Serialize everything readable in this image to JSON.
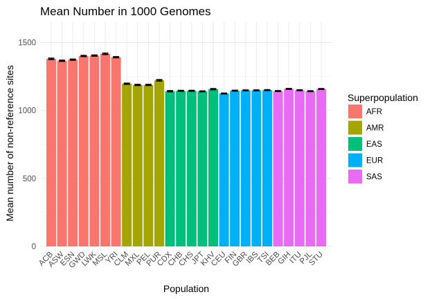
{
  "chart_data": {
    "type": "bar",
    "title": "Mean Number in 1000 Genomes",
    "xlabel": "Population",
    "ylabel": "Mean number of non-reference sites",
    "ylim": [
      0,
      1650
    ],
    "yticks": [
      0,
      500,
      1000,
      1500
    ],
    "grid": true,
    "legend": {
      "title": "Superpopulation",
      "placement": "right",
      "entries": [
        {
          "name": "AFR",
          "color": "#F8766D"
        },
        {
          "name": "AMR",
          "color": "#A3A500"
        },
        {
          "name": "EAS",
          "color": "#00BF7D"
        },
        {
          "name": "EUR",
          "color": "#00B0F6"
        },
        {
          "name": "SAS",
          "color": "#E76BF3"
        }
      ]
    },
    "categories": [
      "ACB",
      "ASW",
      "ESN",
      "GWD",
      "LWK",
      "MSL",
      "YRI",
      "CLM",
      "MXL",
      "PEL",
      "PUR",
      "CDX",
      "CHB",
      "CHS",
      "JPT",
      "KHV",
      "CEU",
      "FIN",
      "GBR",
      "IBS",
      "TSI",
      "BEB",
      "GIH",
      "ITU",
      "PJL",
      "STU"
    ],
    "superpopulation": [
      "AFR",
      "AFR",
      "AFR",
      "AFR",
      "AFR",
      "AFR",
      "AFR",
      "AMR",
      "AMR",
      "AMR",
      "AMR",
      "EAS",
      "EAS",
      "EAS",
      "EAS",
      "EAS",
      "EUR",
      "EUR",
      "EUR",
      "EUR",
      "EUR",
      "SAS",
      "SAS",
      "SAS",
      "SAS",
      "SAS"
    ],
    "values": [
      1380,
      1366,
      1374,
      1401,
      1404,
      1417,
      1392,
      1197,
      1188,
      1188,
      1222,
      1142,
      1145,
      1145,
      1141,
      1157,
      1125,
      1146,
      1148,
      1148,
      1150,
      1143,
      1159,
      1149,
      1142,
      1158
    ],
    "error": [
      5,
      4,
      4,
      4,
      4,
      5,
      4,
      4,
      4,
      4,
      5,
      4,
      3,
      3,
      3,
      4,
      3,
      3,
      3,
      3,
      3,
      3,
      3,
      3,
      3,
      3
    ]
  }
}
